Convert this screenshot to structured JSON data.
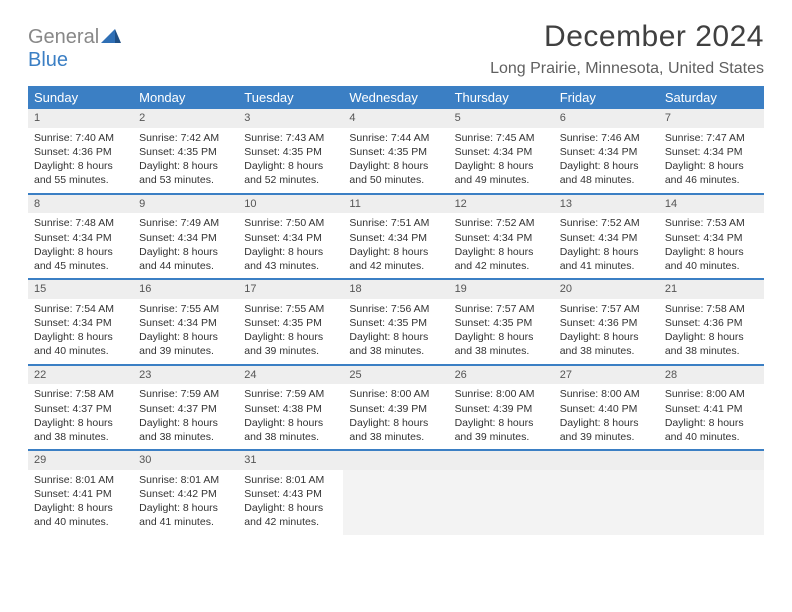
{
  "logo": {
    "general": "General",
    "blue": "Blue"
  },
  "title": "December 2024",
  "location": "Long Prairie, Minnesota, United States",
  "colors": {
    "header_bg": "#3b7fc4",
    "header_text": "#ffffff",
    "daynum_bg": "#eeeeee",
    "border": "#3b7fc4",
    "logo_general": "#888888",
    "logo_blue": "#3b7fc4"
  },
  "dayHeaders": [
    "Sunday",
    "Monday",
    "Tuesday",
    "Wednesday",
    "Thursday",
    "Friday",
    "Saturday"
  ],
  "weeks": [
    [
      {
        "n": "1",
        "sunrise": "Sunrise: 7:40 AM",
        "sunset": "Sunset: 4:36 PM",
        "daylight": "Daylight: 8 hours and 55 minutes."
      },
      {
        "n": "2",
        "sunrise": "Sunrise: 7:42 AM",
        "sunset": "Sunset: 4:35 PM",
        "daylight": "Daylight: 8 hours and 53 minutes."
      },
      {
        "n": "3",
        "sunrise": "Sunrise: 7:43 AM",
        "sunset": "Sunset: 4:35 PM",
        "daylight": "Daylight: 8 hours and 52 minutes."
      },
      {
        "n": "4",
        "sunrise": "Sunrise: 7:44 AM",
        "sunset": "Sunset: 4:35 PM",
        "daylight": "Daylight: 8 hours and 50 minutes."
      },
      {
        "n": "5",
        "sunrise": "Sunrise: 7:45 AM",
        "sunset": "Sunset: 4:34 PM",
        "daylight": "Daylight: 8 hours and 49 minutes."
      },
      {
        "n": "6",
        "sunrise": "Sunrise: 7:46 AM",
        "sunset": "Sunset: 4:34 PM",
        "daylight": "Daylight: 8 hours and 48 minutes."
      },
      {
        "n": "7",
        "sunrise": "Sunrise: 7:47 AM",
        "sunset": "Sunset: 4:34 PM",
        "daylight": "Daylight: 8 hours and 46 minutes."
      }
    ],
    [
      {
        "n": "8",
        "sunrise": "Sunrise: 7:48 AM",
        "sunset": "Sunset: 4:34 PM",
        "daylight": "Daylight: 8 hours and 45 minutes."
      },
      {
        "n": "9",
        "sunrise": "Sunrise: 7:49 AM",
        "sunset": "Sunset: 4:34 PM",
        "daylight": "Daylight: 8 hours and 44 minutes."
      },
      {
        "n": "10",
        "sunrise": "Sunrise: 7:50 AM",
        "sunset": "Sunset: 4:34 PM",
        "daylight": "Daylight: 8 hours and 43 minutes."
      },
      {
        "n": "11",
        "sunrise": "Sunrise: 7:51 AM",
        "sunset": "Sunset: 4:34 PM",
        "daylight": "Daylight: 8 hours and 42 minutes."
      },
      {
        "n": "12",
        "sunrise": "Sunrise: 7:52 AM",
        "sunset": "Sunset: 4:34 PM",
        "daylight": "Daylight: 8 hours and 42 minutes."
      },
      {
        "n": "13",
        "sunrise": "Sunrise: 7:52 AM",
        "sunset": "Sunset: 4:34 PM",
        "daylight": "Daylight: 8 hours and 41 minutes."
      },
      {
        "n": "14",
        "sunrise": "Sunrise: 7:53 AM",
        "sunset": "Sunset: 4:34 PM",
        "daylight": "Daylight: 8 hours and 40 minutes."
      }
    ],
    [
      {
        "n": "15",
        "sunrise": "Sunrise: 7:54 AM",
        "sunset": "Sunset: 4:34 PM",
        "daylight": "Daylight: 8 hours and 40 minutes."
      },
      {
        "n": "16",
        "sunrise": "Sunrise: 7:55 AM",
        "sunset": "Sunset: 4:34 PM",
        "daylight": "Daylight: 8 hours and 39 minutes."
      },
      {
        "n": "17",
        "sunrise": "Sunrise: 7:55 AM",
        "sunset": "Sunset: 4:35 PM",
        "daylight": "Daylight: 8 hours and 39 minutes."
      },
      {
        "n": "18",
        "sunrise": "Sunrise: 7:56 AM",
        "sunset": "Sunset: 4:35 PM",
        "daylight": "Daylight: 8 hours and 38 minutes."
      },
      {
        "n": "19",
        "sunrise": "Sunrise: 7:57 AM",
        "sunset": "Sunset: 4:35 PM",
        "daylight": "Daylight: 8 hours and 38 minutes."
      },
      {
        "n": "20",
        "sunrise": "Sunrise: 7:57 AM",
        "sunset": "Sunset: 4:36 PM",
        "daylight": "Daylight: 8 hours and 38 minutes."
      },
      {
        "n": "21",
        "sunrise": "Sunrise: 7:58 AM",
        "sunset": "Sunset: 4:36 PM",
        "daylight": "Daylight: 8 hours and 38 minutes."
      }
    ],
    [
      {
        "n": "22",
        "sunrise": "Sunrise: 7:58 AM",
        "sunset": "Sunset: 4:37 PM",
        "daylight": "Daylight: 8 hours and 38 minutes."
      },
      {
        "n": "23",
        "sunrise": "Sunrise: 7:59 AM",
        "sunset": "Sunset: 4:37 PM",
        "daylight": "Daylight: 8 hours and 38 minutes."
      },
      {
        "n": "24",
        "sunrise": "Sunrise: 7:59 AM",
        "sunset": "Sunset: 4:38 PM",
        "daylight": "Daylight: 8 hours and 38 minutes."
      },
      {
        "n": "25",
        "sunrise": "Sunrise: 8:00 AM",
        "sunset": "Sunset: 4:39 PM",
        "daylight": "Daylight: 8 hours and 38 minutes."
      },
      {
        "n": "26",
        "sunrise": "Sunrise: 8:00 AM",
        "sunset": "Sunset: 4:39 PM",
        "daylight": "Daylight: 8 hours and 39 minutes."
      },
      {
        "n": "27",
        "sunrise": "Sunrise: 8:00 AM",
        "sunset": "Sunset: 4:40 PM",
        "daylight": "Daylight: 8 hours and 39 minutes."
      },
      {
        "n": "28",
        "sunrise": "Sunrise: 8:00 AM",
        "sunset": "Sunset: 4:41 PM",
        "daylight": "Daylight: 8 hours and 40 minutes."
      }
    ],
    [
      {
        "n": "29",
        "sunrise": "Sunrise: 8:01 AM",
        "sunset": "Sunset: 4:41 PM",
        "daylight": "Daylight: 8 hours and 40 minutes."
      },
      {
        "n": "30",
        "sunrise": "Sunrise: 8:01 AM",
        "sunset": "Sunset: 4:42 PM",
        "daylight": "Daylight: 8 hours and 41 minutes."
      },
      {
        "n": "31",
        "sunrise": "Sunrise: 8:01 AM",
        "sunset": "Sunset: 4:43 PM",
        "daylight": "Daylight: 8 hours and 42 minutes."
      },
      null,
      null,
      null,
      null
    ]
  ]
}
